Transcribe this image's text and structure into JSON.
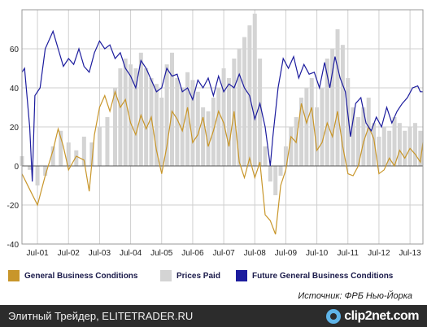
{
  "chart_data": {
    "type": "bar+line",
    "title": "",
    "xlabel": "",
    "ylabel": "",
    "ylim": [
      -40,
      80
    ],
    "yticks": [
      -40,
      -20,
      0,
      20,
      40,
      60,
      80
    ],
    "ytick_labels": [
      "-40",
      "-20",
      "0",
      "20",
      "40",
      "60",
      ""
    ],
    "x_start": "2001-01",
    "x_end": "2013-12",
    "xtick_labels": [
      "Jul-01",
      "Jul-02",
      "Jul-03",
      "Jul-04",
      "Jul-05",
      "Jul-06",
      "Jul-07",
      "Jul-08",
      "Jul-09",
      "Jul-10",
      "Jul-11",
      "Jul-12",
      "Jul-13"
    ],
    "grid": true,
    "legend_position": "bottom",
    "series": [
      {
        "name": "General Business Conditions",
        "kind": "line",
        "color": "#c8962a",
        "points": [
          [
            "2001-01",
            -4
          ],
          [
            "2001-04",
            -12
          ],
          [
            "2001-07",
            -20
          ],
          [
            "2001-10",
            -5
          ],
          [
            "2002-01",
            8
          ],
          [
            "2002-03",
            19
          ],
          [
            "2002-05",
            10
          ],
          [
            "2002-07",
            -2
          ],
          [
            "2002-10",
            5
          ],
          [
            "2003-01",
            3
          ],
          [
            "2003-03",
            -13
          ],
          [
            "2003-05",
            16
          ],
          [
            "2003-07",
            30
          ],
          [
            "2003-09",
            36
          ],
          [
            "2003-11",
            28
          ],
          [
            "2004-01",
            38
          ],
          [
            "2004-03",
            30
          ],
          [
            "2004-05",
            34
          ],
          [
            "2004-07",
            22
          ],
          [
            "2004-09",
            16
          ],
          [
            "2004-11",
            26
          ],
          [
            "2005-01",
            19
          ],
          [
            "2005-03",
            25
          ],
          [
            "2005-05",
            8
          ],
          [
            "2005-07",
            -4
          ],
          [
            "2005-09",
            10
          ],
          [
            "2005-11",
            28
          ],
          [
            "2006-01",
            24
          ],
          [
            "2006-03",
            18
          ],
          [
            "2006-05",
            30
          ],
          [
            "2006-07",
            12
          ],
          [
            "2006-09",
            16
          ],
          [
            "2006-11",
            25
          ],
          [
            "2007-01",
            10
          ],
          [
            "2007-03",
            18
          ],
          [
            "2007-05",
            28
          ],
          [
            "2007-07",
            22
          ],
          [
            "2007-09",
            10
          ],
          [
            "2007-11",
            28
          ],
          [
            "2008-01",
            2
          ],
          [
            "2008-03",
            -6
          ],
          [
            "2008-05",
            4
          ],
          [
            "2008-07",
            -6
          ],
          [
            "2008-09",
            2
          ],
          [
            "2008-11",
            -25
          ],
          [
            "2009-01",
            -28
          ],
          [
            "2009-03",
            -35
          ],
          [
            "2009-05",
            -10
          ],
          [
            "2009-07",
            -2
          ],
          [
            "2009-09",
            15
          ],
          [
            "2009-11",
            12
          ],
          [
            "2010-01",
            32
          ],
          [
            "2010-03",
            22
          ],
          [
            "2010-05",
            30
          ],
          [
            "2010-07",
            8
          ],
          [
            "2010-09",
            12
          ],
          [
            "2010-11",
            22
          ],
          [
            "2011-01",
            15
          ],
          [
            "2011-03",
            28
          ],
          [
            "2011-05",
            10
          ],
          [
            "2011-07",
            -4
          ],
          [
            "2011-09",
            -5
          ],
          [
            "2011-11",
            0
          ],
          [
            "2012-01",
            12
          ],
          [
            "2012-03",
            20
          ],
          [
            "2012-05",
            14
          ],
          [
            "2012-07",
            -4
          ],
          [
            "2012-09",
            -2
          ],
          [
            "2012-11",
            4
          ],
          [
            "2013-01",
            0
          ],
          [
            "2013-03",
            8
          ],
          [
            "2013-05",
            4
          ],
          [
            "2013-07",
            9
          ],
          [
            "2013-09",
            6
          ],
          [
            "2013-11",
            2
          ],
          [
            "2013-12",
            12
          ]
        ]
      },
      {
        "name": "Prices Paid",
        "kind": "bar",
        "color": "#d4d4d4",
        "points": [
          [
            "2001-01",
            5
          ],
          [
            "2001-04",
            -2
          ],
          [
            "2001-07",
            -10
          ],
          [
            "2001-10",
            -5
          ],
          [
            "2002-01",
            10
          ],
          [
            "2002-04",
            18
          ],
          [
            "2002-07",
            12
          ],
          [
            "2002-10",
            8
          ],
          [
            "2003-01",
            15
          ],
          [
            "2003-04",
            12
          ],
          [
            "2003-07",
            20
          ],
          [
            "2003-10",
            25
          ],
          [
            "2004-01",
            40
          ],
          [
            "2004-03",
            50
          ],
          [
            "2004-05",
            55
          ],
          [
            "2004-07",
            52
          ],
          [
            "2004-09",
            50
          ],
          [
            "2004-11",
            58
          ],
          [
            "2005-01",
            50
          ],
          [
            "2005-03",
            45
          ],
          [
            "2005-05",
            42
          ],
          [
            "2005-07",
            35
          ],
          [
            "2005-09",
            52
          ],
          [
            "2005-11",
            58
          ],
          [
            "2006-01",
            45
          ],
          [
            "2006-03",
            40
          ],
          [
            "2006-05",
            48
          ],
          [
            "2006-07",
            44
          ],
          [
            "2006-09",
            38
          ],
          [
            "2006-11",
            30
          ],
          [
            "2007-01",
            28
          ],
          [
            "2007-03",
            35
          ],
          [
            "2007-05",
            40
          ],
          [
            "2007-07",
            50
          ],
          [
            "2007-09",
            45
          ],
          [
            "2007-11",
            55
          ],
          [
            "2008-01",
            60
          ],
          [
            "2008-03",
            66
          ],
          [
            "2008-05",
            72
          ],
          [
            "2008-07",
            78
          ],
          [
            "2008-09",
            55
          ],
          [
            "2008-11",
            10
          ],
          [
            "2009-01",
            -8
          ],
          [
            "2009-03",
            -15
          ],
          [
            "2009-05",
            -5
          ],
          [
            "2009-07",
            10
          ],
          [
            "2009-09",
            20
          ],
          [
            "2009-11",
            25
          ],
          [
            "2010-01",
            35
          ],
          [
            "2010-03",
            40
          ],
          [
            "2010-05",
            45
          ],
          [
            "2010-07",
            30
          ],
          [
            "2010-09",
            40
          ],
          [
            "2010-11",
            55
          ],
          [
            "2011-01",
            60
          ],
          [
            "2011-03",
            70
          ],
          [
            "2011-05",
            62
          ],
          [
            "2011-07",
            45
          ],
          [
            "2011-09",
            30
          ],
          [
            "2011-11",
            25
          ],
          [
            "2012-01",
            30
          ],
          [
            "2012-03",
            35
          ],
          [
            "2012-05",
            22
          ],
          [
            "2012-07",
            15
          ],
          [
            "2012-09",
            20
          ],
          [
            "2012-11",
            18
          ],
          [
            "2013-01",
            25
          ],
          [
            "2013-03",
            22
          ],
          [
            "2013-05",
            18
          ],
          [
            "2013-07",
            20
          ],
          [
            "2013-09",
            22
          ],
          [
            "2013-11",
            18
          ]
        ]
      },
      {
        "name": "Future General Business Conditions",
        "kind": "line",
        "color": "#1c1c9e",
        "points": [
          [
            "2001-01",
            48
          ],
          [
            "2001-02",
            50
          ],
          [
            "2001-04",
            20
          ],
          [
            "2001-05",
            -8
          ],
          [
            "2001-06",
            36
          ],
          [
            "2001-08",
            40
          ],
          [
            "2001-10",
            60
          ],
          [
            "2002-01",
            69
          ],
          [
            "2002-03",
            60
          ],
          [
            "2002-05",
            51
          ],
          [
            "2002-07",
            55
          ],
          [
            "2002-09",
            52
          ],
          [
            "2002-11",
            60
          ],
          [
            "2003-01",
            51
          ],
          [
            "2003-03",
            48
          ],
          [
            "2003-05",
            58
          ],
          [
            "2003-07",
            64
          ],
          [
            "2003-09",
            60
          ],
          [
            "2003-11",
            62
          ],
          [
            "2004-01",
            55
          ],
          [
            "2004-03",
            58
          ],
          [
            "2004-05",
            50
          ],
          [
            "2004-07",
            46
          ],
          [
            "2004-09",
            40
          ],
          [
            "2004-11",
            54
          ],
          [
            "2005-01",
            50
          ],
          [
            "2005-03",
            44
          ],
          [
            "2005-05",
            38
          ],
          [
            "2005-07",
            40
          ],
          [
            "2005-09",
            50
          ],
          [
            "2005-11",
            46
          ],
          [
            "2006-01",
            47
          ],
          [
            "2006-03",
            38
          ],
          [
            "2006-05",
            40
          ],
          [
            "2006-07",
            34
          ],
          [
            "2006-09",
            44
          ],
          [
            "2006-11",
            40
          ],
          [
            "2007-01",
            45
          ],
          [
            "2007-03",
            36
          ],
          [
            "2007-05",
            46
          ],
          [
            "2007-07",
            38
          ],
          [
            "2007-09",
            42
          ],
          [
            "2007-11",
            40
          ],
          [
            "2008-01",
            47
          ],
          [
            "2008-03",
            40
          ],
          [
            "2008-05",
            36
          ],
          [
            "2008-07",
            24
          ],
          [
            "2008-09",
            32
          ],
          [
            "2008-11",
            20
          ],
          [
            "2009-01",
            0
          ],
          [
            "2009-02",
            15
          ],
          [
            "2009-04",
            40
          ],
          [
            "2009-06",
            55
          ],
          [
            "2009-08",
            50
          ],
          [
            "2009-10",
            56
          ],
          [
            "2009-12",
            45
          ],
          [
            "2010-02",
            52
          ],
          [
            "2010-04",
            47
          ],
          [
            "2010-06",
            48
          ],
          [
            "2010-08",
            40
          ],
          [
            "2010-10",
            53
          ],
          [
            "2010-12",
            40
          ],
          [
            "2011-02",
            56
          ],
          [
            "2011-04",
            45
          ],
          [
            "2011-06",
            38
          ],
          [
            "2011-08",
            15
          ],
          [
            "2011-10",
            32
          ],
          [
            "2011-12",
            35
          ],
          [
            "2012-02",
            22
          ],
          [
            "2012-04",
            18
          ],
          [
            "2012-06",
            25
          ],
          [
            "2012-08",
            20
          ],
          [
            "2012-10",
            30
          ],
          [
            "2012-12",
            22
          ],
          [
            "2013-02",
            28
          ],
          [
            "2013-04",
            32
          ],
          [
            "2013-06",
            35
          ],
          [
            "2013-08",
            40
          ],
          [
            "2013-10",
            41
          ],
          [
            "2013-11",
            38
          ],
          [
            "2013-12",
            38
          ]
        ]
      }
    ]
  },
  "legend": {
    "items": [
      {
        "label": "General Business Conditions",
        "color": "#c8962a"
      },
      {
        "label": "Prices Paid",
        "color": "#d4d4d4"
      },
      {
        "label": "Future General Business Conditions",
        "color": "#1c1c9e"
      }
    ]
  },
  "source": "Источник: ФРБ Нью-Йорка",
  "footer": {
    "text": "Элитный Трейдер, ELITETRADER.RU",
    "logo_text": "clip2net.com",
    "logo_icon": "clip2net-logo-icon"
  }
}
